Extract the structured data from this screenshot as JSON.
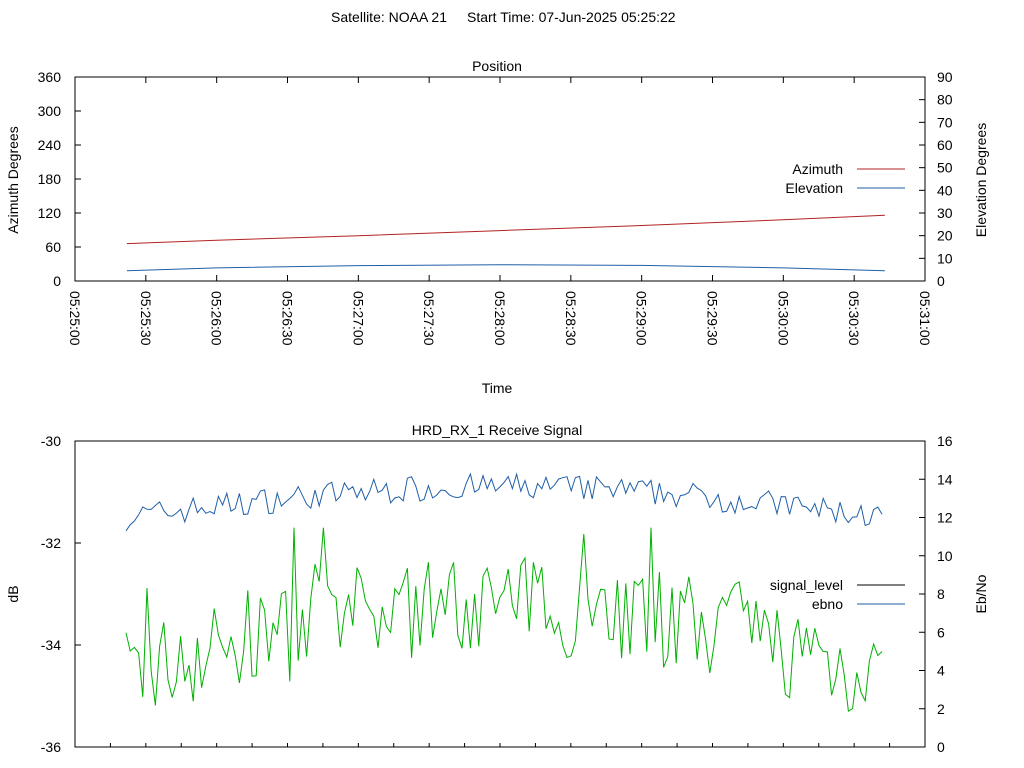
{
  "header": {
    "satellite": "Satellite: NOAA 21",
    "start_time": "Start Time: 07-Jun-2025 05:25:22"
  },
  "colors": {
    "azimuth": "#b22222",
    "elevation": "#1f5fa8",
    "signal_level": "#00b000",
    "ebno": "#1f5fa8",
    "axis": "#000000"
  },
  "chart_data": [
    {
      "type": "line",
      "title": "Position",
      "xlabel": "Time",
      "ylabel": "Azimuth Degrees",
      "y2label": "Elevation Degrees",
      "xticks": [
        "05:25:00",
        "05:25:30",
        "05:26:00",
        "05:26:30",
        "05:27:00",
        "05:27:30",
        "05:28:00",
        "05:28:30",
        "05:29:00",
        "05:29:30",
        "05:30:00",
        "05:30:30",
        "05:31:00"
      ],
      "xlim_seconds": [
        0,
        360
      ],
      "ylim": [
        0,
        360
      ],
      "yticks": [
        0,
        60,
        120,
        180,
        240,
        300,
        360
      ],
      "y2lim": [
        0,
        90
      ],
      "y2ticks": [
        0,
        10,
        20,
        30,
        40,
        50,
        60,
        70,
        80,
        90
      ],
      "legend_position": "right",
      "series": [
        {
          "name": "Azimuth",
          "axis": "y",
          "x": [
            22,
            60,
            120,
            180,
            240,
            300,
            343
          ],
          "values": [
            66,
            72,
            80,
            89,
            98,
            108,
            116
          ]
        },
        {
          "name": "Elevation",
          "axis": "y2",
          "x": [
            22,
            60,
            120,
            180,
            240,
            300,
            343
          ],
          "values": [
            4.5,
            5.8,
            6.8,
            7.2,
            6.9,
            5.8,
            4.5
          ]
        }
      ]
    },
    {
      "type": "line",
      "title": "HRD_RX_1 Receive Signal",
      "ylabel": "dB",
      "y2label": "Eb/No",
      "ylim": [
        -36,
        -30
      ],
      "yticks": [
        -30,
        -32,
        -34,
        -36
      ],
      "y2lim": [
        0,
        16
      ],
      "y2ticks": [
        0,
        2,
        4,
        6,
        8,
        10,
        12,
        14,
        16
      ],
      "legend_position": "right",
      "series": [
        {
          "name": "signal_level",
          "axis": "y",
          "values": []
        },
        {
          "name": "ebno",
          "axis": "y2",
          "values": []
        }
      ]
    }
  ]
}
